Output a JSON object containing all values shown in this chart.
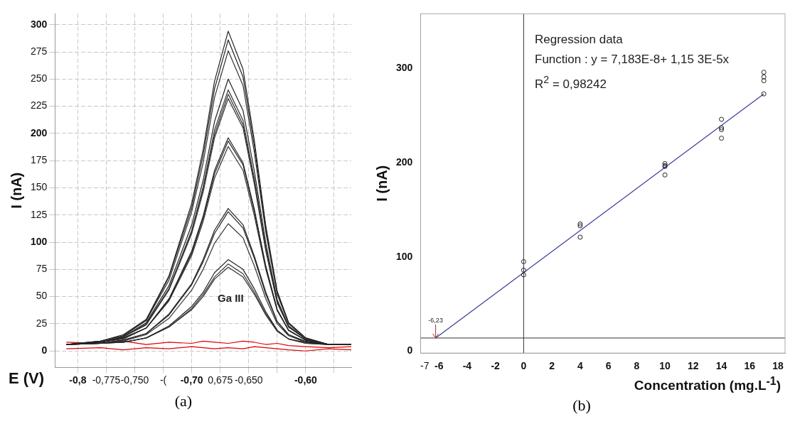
{
  "chart_data": [
    {
      "type": "line",
      "xlabel": "E (V)",
      "ylabel": "I (nA)",
      "x": [
        -0.81,
        -0.78,
        -0.76,
        -0.74,
        -0.72,
        -0.7,
        -0.69,
        -0.68,
        -0.668,
        -0.655,
        -0.645,
        -0.635,
        -0.625,
        -0.615,
        -0.6,
        -0.58,
        -0.56
      ],
      "series": [
        {
          "color": "#222222",
          "values": [
            6,
            9,
            15,
            29,
            69,
            136,
            185,
            248,
            294,
            259,
            193,
            115,
            55,
            26,
            12,
            6,
            6
          ]
        },
        {
          "color": "#222222",
          "values": [
            6,
            9,
            14,
            28,
            68,
            132,
            180,
            241,
            286,
            252,
            188,
            112,
            54,
            26,
            12,
            6,
            6
          ]
        },
        {
          "color": "#333333",
          "values": [
            6,
            9,
            14,
            28,
            65,
            128,
            173,
            233,
            276,
            244,
            182,
            109,
            52,
            25,
            11,
            6,
            6
          ]
        },
        {
          "color": "#222222",
          "values": [
            6,
            8,
            13,
            26,
            60,
            116,
            157,
            211,
            250,
            221,
            165,
            99,
            47,
            23,
            11,
            6,
            6
          ]
        },
        {
          "color": "#333333",
          "values": [
            6,
            8,
            13,
            25,
            57,
            111,
            151,
            203,
            240,
            212,
            158,
            95,
            46,
            22,
            11,
            6,
            6
          ]
        },
        {
          "color": "#333333",
          "values": [
            6,
            8,
            13,
            24,
            57,
            110,
            149,
            199,
            236,
            208,
            156,
            93,
            45,
            22,
            11,
            6,
            6
          ]
        },
        {
          "color": "#333333",
          "values": [
            6,
            8,
            13,
            24,
            56,
            108,
            146,
            196,
            232,
            205,
            153,
            92,
            44,
            22,
            11,
            6,
            6
          ]
        },
        {
          "color": "#222222",
          "values": [
            6,
            8,
            12,
            21,
            48,
            92,
            124,
            166,
            196,
            173,
            130,
            78,
            38,
            19,
            10,
            6,
            6
          ]
        },
        {
          "color": "#222222",
          "values": [
            6,
            8,
            12,
            21,
            47,
            90,
            122,
            163,
            193,
            171,
            128,
            77,
            38,
            19,
            10,
            6,
            6
          ]
        },
        {
          "color": "#333333",
          "values": [
            6,
            8,
            11,
            21,
            46,
            88,
            119,
            159,
            188,
            166,
            124,
            75,
            37,
            19,
            10,
            6,
            6
          ]
        },
        {
          "color": "#222222",
          "values": [
            6,
            7,
            10,
            16,
            34,
            62,
            84,
            111,
            131,
            116,
            87,
            54,
            27,
            15,
            9,
            6,
            6
          ]
        },
        {
          "color": "#222222",
          "values": [
            6,
            7,
            10,
            16,
            33,
            61,
            82,
            108,
            128,
            113,
            85,
            52,
            27,
            15,
            8,
            6,
            6
          ]
        },
        {
          "color": "#333333",
          "values": [
            6,
            7,
            9,
            15,
            30,
            56,
            75,
            99,
            117,
            104,
            78,
            48,
            25,
            14,
            8,
            6,
            6
          ]
        },
        {
          "color": "#222222",
          "values": [
            6,
            7,
            8,
            12,
            23,
            41,
            54,
            72,
            84,
            75,
            57,
            36,
            19,
            11,
            8,
            6,
            6
          ]
        },
        {
          "color": "#333333",
          "values": [
            6,
            7,
            8,
            12,
            22,
            39,
            52,
            68,
            80,
            71,
            54,
            34,
            19,
            11,
            7,
            6,
            6
          ]
        },
        {
          "color": "#333333",
          "values": [
            6,
            7,
            8,
            12,
            22,
            38,
            50,
            66,
            77,
            68,
            52,
            33,
            18,
            11,
            7,
            6,
            6
          ]
        },
        {
          "color": "#e00000",
          "values": [
            8,
            7,
            9,
            6,
            8,
            7,
            9,
            8,
            7,
            9,
            8,
            6,
            7,
            5,
            4,
            3,
            4
          ]
        },
        {
          "color": "#e00000",
          "values": [
            2,
            3,
            1,
            3,
            2,
            4,
            3,
            2,
            3,
            2,
            4,
            3,
            2,
            1,
            0,
            2,
            1
          ]
        }
      ],
      "xlim": [
        -0.82,
        -0.56
      ],
      "ylim": [
        -15,
        310
      ],
      "xticks": [
        {
          "value": -0.8,
          "label": "-0,8"
        },
        {
          "value": -0.775,
          "label": "-0,775"
        },
        {
          "value": -0.75,
          "label": "-0,750"
        },
        {
          "value": -0.725,
          "label": "-("
        },
        {
          "value": -0.7,
          "label": "-0,70"
        },
        {
          "value": -0.675,
          "label": "0,675"
        },
        {
          "value": -0.65,
          "label": "-0,650"
        },
        {
          "value": -0.625,
          "label": null
        },
        {
          "value": -0.6,
          "label": "-0,60"
        },
        {
          "value": -0.575,
          "label": null
        }
      ],
      "yticks": [
        0,
        25,
        50,
        75,
        100,
        125,
        150,
        175,
        200,
        225,
        250,
        275,
        300
      ],
      "grid": true,
      "legend": false,
      "marker": "none",
      "line_style": "solid",
      "annotations": [
        "Ga III",
        "(a)"
      ]
    },
    {
      "type": "scatter",
      "xlabel": "Concentration (mg.L$^{-1}$)",
      "ylabel": "I (nA)",
      "series": [
        {
          "color": "#222222",
          "x": [
            0,
            0,
            0,
            4,
            4,
            4,
            10,
            10,
            10,
            10,
            14,
            14,
            14,
            14,
            17,
            17,
            17,
            17
          ],
          "values": [
            95,
            86,
            81,
            135,
            133,
            121,
            199,
            197,
            196,
            187,
            246,
            237,
            235,
            226,
            296,
            291,
            287,
            273
          ]
        },
        {
          "type": "line",
          "color": "#3a3a9a",
          "marker": "none",
          "x": [
            -6.23,
            17
          ],
          "values": [
            14,
            273
          ]
        }
      ],
      "xlim": [
        -7.3,
        18.5
      ],
      "ylim": [
        -2,
        358
      ],
      "xticks": [
        -7,
        -6,
        -4,
        -2,
        0,
        2,
        4,
        6,
        8,
        10,
        12,
        14,
        16,
        18
      ],
      "yticks": [
        0,
        100,
        200,
        300
      ],
      "grid": false,
      "legend": false,
      "marker": "circle",
      "line_style": "solid",
      "ref_lines": [
        {
          "axis": "y",
          "value": 14,
          "color": "#333333"
        },
        {
          "axis": "x",
          "value": 0,
          "color": "#333333"
        }
      ],
      "annotations": [
        {
          "text": "-6,23",
          "x": -6.23,
          "y": 14
        },
        "Regression data",
        "Function : y = 7,183E-8+ 1,15 3E-5x",
        "R$^{2}$ = 0,98242",
        "(b)"
      ]
    }
  ]
}
